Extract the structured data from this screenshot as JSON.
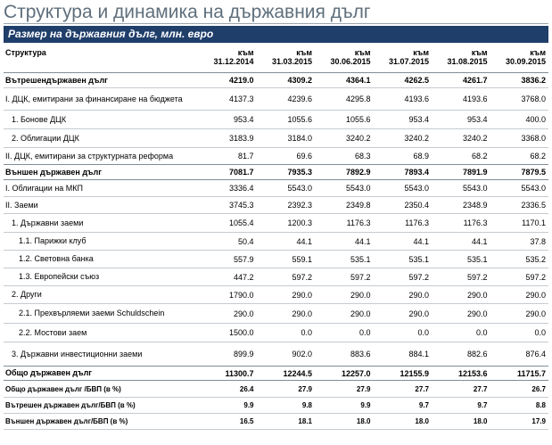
{
  "title": "Структура и динамика на държавния дълг",
  "band": "Размер на държавния дълг, млн. евро",
  "header": {
    "label": "Структура",
    "columns": [
      {
        "top": "към",
        "bottom": "31.12.2014"
      },
      {
        "top": "към",
        "bottom": "31.03.2015"
      },
      {
        "top": "към",
        "bottom": "30.06.2015"
      },
      {
        "top": "към",
        "bottom": "31.07.2015"
      },
      {
        "top": "към",
        "bottom": "31.08.2015"
      },
      {
        "top": "към",
        "bottom": "30.09.2015"
      }
    ]
  },
  "rows": [
    {
      "label": "Вътрешендържавен дълг",
      "values": [
        "4219.0",
        "4309.2",
        "4364.1",
        "4262.5",
        "4261.7",
        "3836.2"
      ]
    },
    {
      "label": "I. ДЦК, емитирани за финансиране на бюджета",
      "values": [
        "4137.3",
        "4239.6",
        "4295.8",
        "4193.6",
        "4193.6",
        "3768.0"
      ]
    },
    {
      "label": "1. Бонове ДЦК",
      "values": [
        "953.4",
        "1055.6",
        "1055.6",
        "953.4",
        "953.4",
        "400.0"
      ]
    },
    {
      "label": "2. Облигации ДЦК",
      "values": [
        "3183.9",
        "3184.0",
        "3240.2",
        "3240.2",
        "3240.2",
        "3368.0"
      ]
    },
    {
      "label": "II. ДЦК, емитирани за структурната реформа",
      "values": [
        "81.7",
        "69.6",
        "68.3",
        "68.9",
        "68.2",
        "68.2"
      ]
    },
    {
      "label": "Външен държавен дълг",
      "values": [
        "7081.7",
        "7935.3",
        "7892.9",
        "7893.4",
        "7891.9",
        "7879.5"
      ]
    },
    {
      "label": "I. Облигации на МКП",
      "values": [
        "3336.4",
        "5543.0",
        "5543.0",
        "5543.0",
        "5543.0",
        "5543.0"
      ]
    },
    {
      "label": "II. Заеми",
      "values": [
        "3745.3",
        "2392.3",
        "2349.8",
        "2350.4",
        "2348.9",
        "2336.5"
      ]
    },
    {
      "label": "1. Държавни заеми",
      "values": [
        "1055.4",
        "1200.3",
        "1176.3",
        "1176.3",
        "1176.3",
        "1170.1"
      ]
    },
    {
      "label": "1.1. Парижки клуб",
      "values": [
        "50.4",
        "44.1",
        "44.1",
        "44.1",
        "44.1",
        "37.8"
      ]
    },
    {
      "label": "1.2. Световна банка",
      "values": [
        "557.9",
        "559.1",
        "535.1",
        "535.1",
        "535.1",
        "535.2"
      ]
    },
    {
      "label": "1.3. Европейски съюз",
      "values": [
        "447.2",
        "597.2",
        "597.2",
        "597.2",
        "597.2",
        "597.2"
      ]
    },
    {
      "label": "2. Други",
      "values": [
        "1790.0",
        "290.0",
        "290.0",
        "290.0",
        "290.0",
        "290.0"
      ]
    },
    {
      "label": "2.1. Прехвърляеми заеми Schuldschein",
      "values": [
        "290.0",
        "290.0",
        "290.0",
        "290.0",
        "290.0",
        "290.0"
      ]
    },
    {
      "label": "2.2. Мостови заем",
      "values": [
        "1500.0",
        "0.0",
        "0.0",
        "0.0",
        "0.0",
        "0.0"
      ]
    },
    {
      "label": "3. Държавни инвестиционни заеми",
      "values": [
        "899.9",
        "902.0",
        "883.6",
        "884.1",
        "882.6",
        "876.4"
      ]
    },
    {
      "label": "Общо държавен дълг",
      "values": [
        "11300.7",
        "12244.5",
        "12257.0",
        "12155.9",
        "12153.6",
        "11715.7"
      ]
    },
    {
      "label": "Общо държавен дълг /БВП (в %)",
      "values": [
        "26.4",
        "27.9",
        "27.9",
        "27.7",
        "27.7",
        "26.7"
      ]
    },
    {
      "label": "Вътрешен държавен дълг/БВП (в %)",
      "values": [
        "9.9",
        "9.8",
        "9.9",
        "9.7",
        "9.7",
        "8.8"
      ]
    },
    {
      "label": "Външен държавен дълг/БВП (в %)",
      "values": [
        "16.5",
        "18.1",
        "18.0",
        "18.0",
        "18.0",
        "17.9"
      ]
    }
  ]
}
